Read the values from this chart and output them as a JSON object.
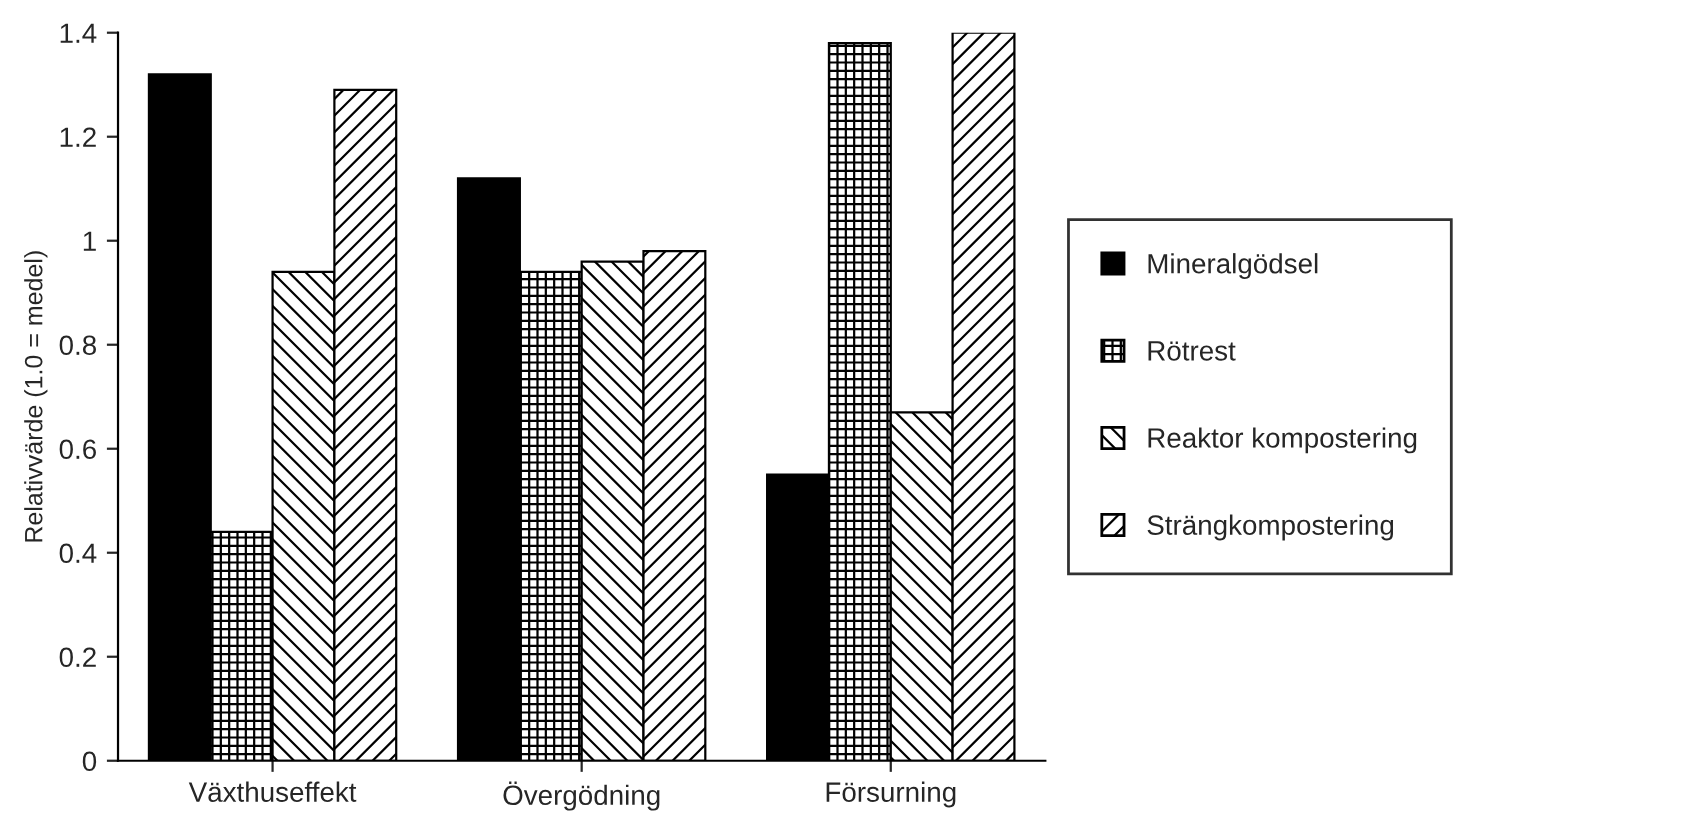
{
  "chart_data": {
    "type": "bar",
    "ylabel": "Relativvärde (1.0 = medel)",
    "categories": [
      "Växthuseffekt",
      "Övergödning",
      "Försurning"
    ],
    "series": [
      {
        "name": "Mineralgödsel",
        "color": "#000000",
        "values": [
          1.32,
          1.12,
          0.55
        ]
      },
      {
        "name": "Rötrest",
        "color": "#000000",
        "values": [
          0.44,
          0.94,
          1.38
        ]
      },
      {
        "name": "Reaktor kompostering",
        "color": "#000000",
        "values": [
          0.94,
          0.96,
          0.67
        ]
      },
      {
        "name": "Strängkompostering",
        "color": "#000000",
        "values": [
          1.29,
          0.98,
          1.4
        ]
      }
    ],
    "ylim": [
      0,
      1.4
    ],
    "yticks": [
      0,
      0.2,
      0.4,
      0.6,
      0.8,
      1,
      1.2,
      1.4
    ],
    "grid": false,
    "legend": "right"
  }
}
